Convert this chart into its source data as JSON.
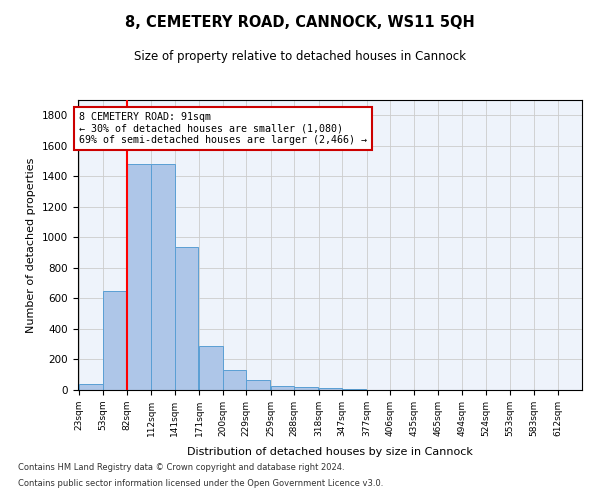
{
  "title": "8, CEMETERY ROAD, CANNOCK, WS11 5QH",
  "subtitle": "Size of property relative to detached houses in Cannock",
  "xlabel": "Distribution of detached houses by size in Cannock",
  "ylabel": "Number of detached properties",
  "footnote1": "Contains HM Land Registry data © Crown copyright and database right 2024.",
  "footnote2": "Contains public sector information licensed under the Open Government Licence v3.0.",
  "bins": [
    23,
    53,
    82,
    112,
    141,
    171,
    200,
    229,
    259,
    288,
    318,
    347,
    377,
    406,
    435,
    465,
    494,
    524,
    553,
    583,
    612
  ],
  "bar_values": [
    40,
    650,
    1480,
    1480,
    940,
    290,
    130,
    65,
    25,
    20,
    15,
    5,
    3,
    2,
    1,
    1,
    0,
    0,
    0,
    0
  ],
  "bar_color": "#aec6e8",
  "bar_edge_color": "#5a9fd4",
  "red_line_x": 82,
  "ylim": [
    0,
    1900
  ],
  "yticks": [
    0,
    200,
    400,
    600,
    800,
    1000,
    1200,
    1400,
    1600,
    1800
  ],
  "annotation_text": "8 CEMETERY ROAD: 91sqm\n← 30% of detached houses are smaller (1,080)\n69% of semi-detached houses are larger (2,466) →",
  "annotation_box_color": "#ffffff",
  "annotation_box_edge": "#cc0000",
  "grid_color": "#cccccc",
  "bg_color": "#eef3fb",
  "fig_width": 6.0,
  "fig_height": 5.0,
  "title_fontsize": 10.5,
  "subtitle_fontsize": 8.5
}
